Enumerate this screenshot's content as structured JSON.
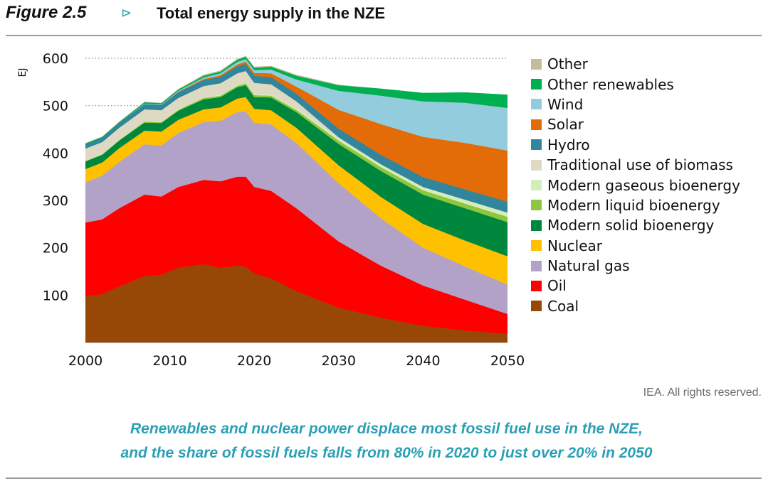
{
  "header": {
    "figure_number": "Figure 2.5",
    "arrow": "⊳",
    "title": "Total energy supply in the NZE"
  },
  "credit": "IEA. All rights reserved.",
  "caption": {
    "line1": "Renewables and nuclear power displace most fossil fuel use in the NZE,",
    "line2": "and the share of fossil fuels falls from 80% in 2020 to just over 20% in 2050"
  },
  "colors": {
    "Coal": "#974706",
    "Oil": "#ff0000",
    "Natural gas": "#b3a2c7",
    "Nuclear": "#ffc000",
    "Modern solid bioenergy": "#00873e",
    "Modern liquid bioenergy": "#8dc63f",
    "Modern gaseous bioenergy": "#d4edbc",
    "Traditional use of biomass": "#ddd9c3",
    "Hydro": "#31859c",
    "Solar": "#e36c09",
    "Wind": "#93cddd",
    "Other renewables": "#00b050",
    "Other": "#c4bd97"
  },
  "chart_data": {
    "type": "area",
    "stacked": true,
    "ylabel": "EJ",
    "xlabel": "",
    "ylim": [
      0,
      600
    ],
    "xlim": [
      2000,
      2050
    ],
    "yticks": [
      100,
      200,
      300,
      400,
      500,
      600
    ],
    "xticks": [
      2000,
      2010,
      2020,
      2030,
      2040,
      2050
    ],
    "grid": "dotted line at 500 and 600 only",
    "legend_position": "right",
    "x": [
      2000,
      2002,
      2004,
      2007,
      2009,
      2011,
      2014,
      2016,
      2018,
      2019,
      2020,
      2022,
      2025,
      2030,
      2035,
      2040,
      2045,
      2050
    ],
    "series": [
      {
        "name": "Coal",
        "values": [
          98,
          102,
          118,
          140,
          143,
          158,
          165,
          157,
          162,
          160,
          145,
          135,
          108,
          73,
          52,
          35,
          25,
          18
        ]
      },
      {
        "name": "Oil",
        "values": [
          155,
          158,
          165,
          172,
          165,
          170,
          178,
          183,
          188,
          190,
          183,
          185,
          175,
          140,
          110,
          85,
          65,
          42
        ]
      },
      {
        "name": "Natural gas",
        "values": [
          85,
          92,
          98,
          106,
          108,
          114,
          122,
          128,
          136,
          138,
          136,
          140,
          138,
          123,
          100,
          80,
          70,
          62
        ]
      },
      {
        "name": "Nuclear",
        "values": [
          28,
          28,
          29,
          29,
          29,
          28,
          27,
          28,
          29,
          30,
          29,
          30,
          32,
          38,
          45,
          50,
          55,
          60
        ]
      },
      {
        "name": "Modern solid bioenergy",
        "values": [
          16,
          16,
          16,
          17,
          18,
          19,
          21,
          22,
          24,
          25,
          25,
          27,
          33,
          45,
          55,
          62,
          68,
          72
        ]
      },
      {
        "name": "Modern liquid bioenergy",
        "values": [
          1,
          1,
          1,
          2,
          2,
          2,
          3,
          3,
          3,
          4,
          4,
          4,
          5,
          7,
          8,
          9,
          10,
          11
        ]
      },
      {
        "name": "Modern gaseous bioenergy",
        "values": [
          1,
          1,
          1,
          1,
          1,
          1,
          1,
          2,
          2,
          2,
          2,
          2,
          3,
          5,
          6,
          7,
          8,
          9
        ]
      },
      {
        "name": "Traditional use of biomass",
        "values": [
          25,
          25,
          25,
          25,
          24,
          24,
          24,
          24,
          24,
          24,
          24,
          22,
          15,
          2,
          0,
          0,
          0,
          0
        ]
      },
      {
        "name": "Hydro",
        "values": [
          9,
          9,
          10,
          11,
          11,
          12,
          13,
          14,
          15,
          15,
          15,
          15,
          16,
          18,
          20,
          21,
          22,
          23
        ]
      },
      {
        "name": "Solar",
        "values": [
          0,
          0,
          0,
          0,
          0,
          1,
          2,
          3,
          4,
          5,
          6,
          8,
          15,
          40,
          65,
          85,
          98,
          108
        ]
      },
      {
        "name": "Wind",
        "values": [
          0,
          0,
          0,
          1,
          1,
          2,
          3,
          4,
          5,
          5,
          6,
          8,
          15,
          40,
          60,
          75,
          85,
          90
        ]
      },
      {
        "name": "Other renewables",
        "values": [
          2,
          2,
          2,
          3,
          3,
          3,
          4,
          4,
          5,
          5,
          5,
          6,
          8,
          12,
          15,
          18,
          22,
          28
        ]
      },
      {
        "name": "Other",
        "values": [
          1,
          1,
          1,
          1,
          1,
          1,
          2,
          2,
          2,
          2,
          2,
          2,
          2,
          1,
          0,
          0,
          0,
          0
        ]
      }
    ]
  }
}
